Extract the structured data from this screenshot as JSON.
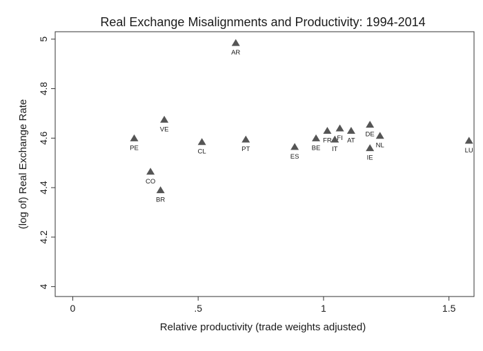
{
  "chart_data": {
    "type": "scatter",
    "title": "Real Exchange Misalignments and Productivity: 1994-2014",
    "xlabel": "Relative productivity (trade weights adjusted)",
    "ylabel": "(log of) Real Exchange Rate",
    "xlim": [
      -0.07,
      1.6
    ],
    "ylim": [
      3.96,
      5.03
    ],
    "xticks": [
      0,
      0.5,
      1,
      1.5
    ],
    "xtick_labels": [
      "0",
      ".5",
      "1",
      "1.5"
    ],
    "yticks": [
      4,
      4.2,
      4.4,
      4.6,
      4.8,
      5
    ],
    "ytick_labels": [
      "4",
      "4.2",
      "4.4",
      "4.6",
      "4.8",
      "5"
    ],
    "grid": false,
    "marker": "triangle",
    "marker_color": "#555555",
    "points": [
      {
        "label": "AR",
        "x": 0.65,
        "y": 4.985
      },
      {
        "label": "VE",
        "x": 0.365,
        "y": 4.675
      },
      {
        "label": "PE",
        "x": 0.245,
        "y": 4.6
      },
      {
        "label": "CL",
        "x": 0.515,
        "y": 4.585
      },
      {
        "label": "PT",
        "x": 0.69,
        "y": 4.595
      },
      {
        "label": "CO",
        "x": 0.31,
        "y": 4.465
      },
      {
        "label": "BR",
        "x": 0.35,
        "y": 4.39
      },
      {
        "label": "ES",
        "x": 0.885,
        "y": 4.565
      },
      {
        "label": "BE",
        "x": 0.97,
        "y": 4.6
      },
      {
        "label": "FR",
        "x": 1.015,
        "y": 4.63
      },
      {
        "label": "FI",
        "x": 1.065,
        "y": 4.64
      },
      {
        "label": "IT",
        "x": 1.045,
        "y": 4.595
      },
      {
        "label": "AT",
        "x": 1.11,
        "y": 4.63
      },
      {
        "label": "DE",
        "x": 1.185,
        "y": 4.655
      },
      {
        "label": "NL",
        "x": 1.225,
        "y": 4.61
      },
      {
        "label": "IE",
        "x": 1.185,
        "y": 4.56
      },
      {
        "label": "LU",
        "x": 1.58,
        "y": 4.59
      }
    ]
  }
}
